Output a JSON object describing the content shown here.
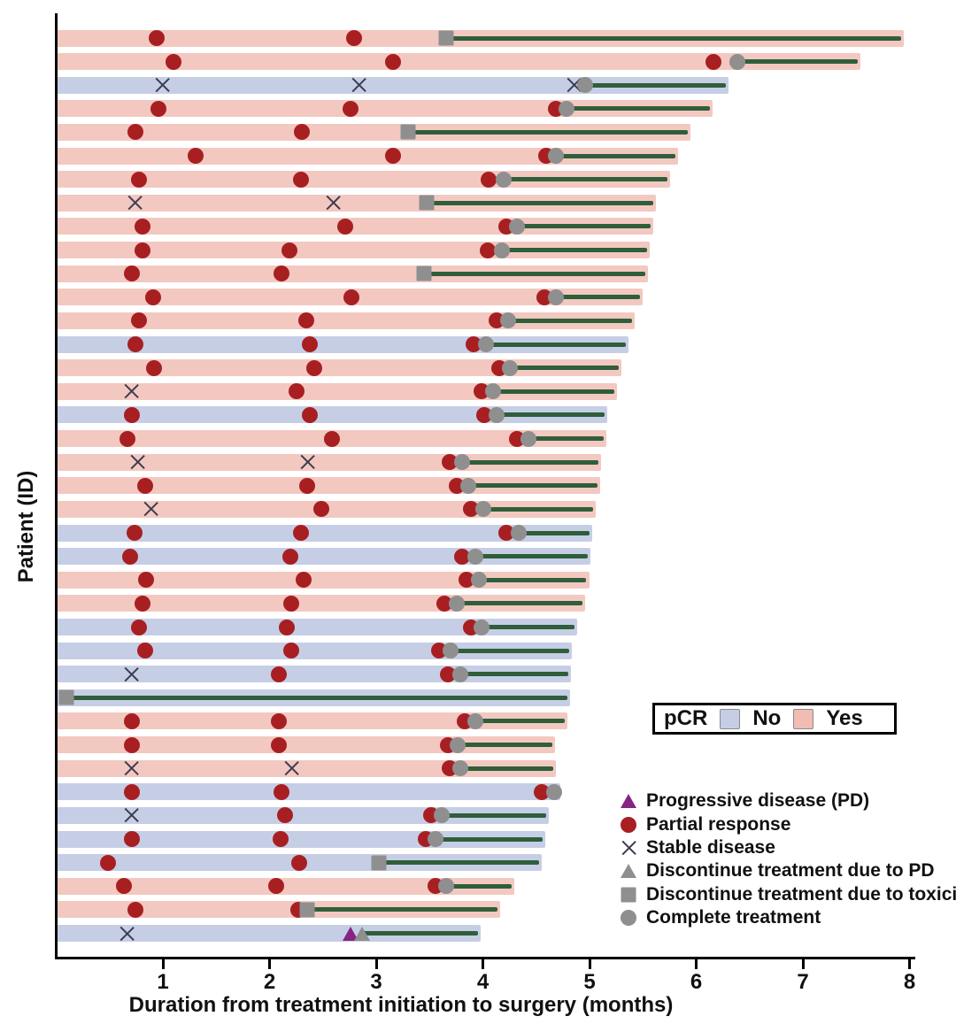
{
  "chart_data": {
    "type": "bar",
    "subtype": "swimmer-plot",
    "title": "",
    "xlabel": "Duration from treatment initiation to surgery (months)",
    "ylabel": "Patient (ID)",
    "xlim": [
      0,
      8
    ],
    "xticks": [
      1,
      2,
      3,
      4,
      5,
      6,
      7,
      8
    ],
    "grid": false,
    "legend_position": "bottom-right",
    "colors": {
      "pcr_yes_bar": "#f3c8c0",
      "pcr_no_bar": "#c6cee6",
      "treatment_line": "#2e5e3a",
      "partial_response": "#a81f22",
      "gray_marker": "#8f8f8f",
      "progressive_disease": "#872383",
      "stable_disease_x": "#3c3c50",
      "axis": "#000000"
    },
    "pcr_legend": {
      "title": "pCR",
      "no_label": "No",
      "yes_label": "Yes"
    },
    "marker_legend": [
      {
        "symbol": "pd",
        "label": "Progressive disease (PD)"
      },
      {
        "symbol": "pr",
        "label": "Partial response"
      },
      {
        "symbol": "sd",
        "label": "Stable disease"
      },
      {
        "symbol": "dpd",
        "label": "Discontinue treatment due to PD"
      },
      {
        "symbol": "tox",
        "label": "Discontinue treatment due to toxicity"
      },
      {
        "symbol": "comp",
        "label": "Complete treatment"
      }
    ],
    "marker_names": {
      "pd": "progressive-disease-marker",
      "pr": "partial-response-marker",
      "sd": "stable-disease-marker",
      "dpd": "discontinue-pd-marker",
      "tox": "discontinue-toxicity-marker",
      "comp": "complete-treatment-marker"
    },
    "patients": [
      {
        "pcr": "yes",
        "end": 7.95,
        "green_start": 3.66,
        "markers": [
          {
            "t": "pr",
            "x": 0.95
          },
          {
            "t": "pr",
            "x": 2.8
          },
          {
            "t": "tox",
            "x": 3.66
          }
        ]
      },
      {
        "pcr": "yes",
        "end": 7.54,
        "green_start": 6.39,
        "markers": [
          {
            "t": "pr",
            "x": 1.1
          },
          {
            "t": "pr",
            "x": 3.16
          },
          {
            "t": "pr",
            "x": 6.17
          },
          {
            "t": "comp",
            "x": 6.39
          }
        ]
      },
      {
        "pcr": "no",
        "end": 6.31,
        "green_start": 4.96,
        "markers": [
          {
            "t": "sd",
            "x": 1.0
          },
          {
            "t": "sd",
            "x": 2.84
          },
          {
            "t": "sd",
            "x": 4.86
          },
          {
            "t": "comp",
            "x": 4.96
          }
        ]
      },
      {
        "pcr": "yes",
        "end": 6.16,
        "green_start": 4.79,
        "markers": [
          {
            "t": "pr",
            "x": 0.96
          },
          {
            "t": "pr",
            "x": 2.76
          },
          {
            "t": "pr",
            "x": 4.69
          },
          {
            "t": "comp",
            "x": 4.79
          }
        ]
      },
      {
        "pcr": "yes",
        "end": 5.95,
        "green_start": 3.3,
        "markers": [
          {
            "t": "pr",
            "x": 0.75
          },
          {
            "t": "pr",
            "x": 2.31
          },
          {
            "t": "tox",
            "x": 3.3
          }
        ]
      },
      {
        "pcr": "yes",
        "end": 5.83,
        "green_start": 4.69,
        "markers": [
          {
            "t": "pr",
            "x": 1.31
          },
          {
            "t": "pr",
            "x": 3.16
          },
          {
            "t": "pr",
            "x": 4.6
          },
          {
            "t": "comp",
            "x": 4.69
          }
        ]
      },
      {
        "pcr": "yes",
        "end": 5.76,
        "green_start": 4.2,
        "markers": [
          {
            "t": "pr",
            "x": 0.78
          },
          {
            "t": "pr",
            "x": 2.3
          },
          {
            "t": "pr",
            "x": 4.06
          },
          {
            "t": "comp",
            "x": 4.2
          }
        ]
      },
      {
        "pcr": "yes",
        "end": 5.63,
        "green_start": 3.48,
        "markers": [
          {
            "t": "sd",
            "x": 0.74
          },
          {
            "t": "sd",
            "x": 2.6
          },
          {
            "t": "tox",
            "x": 3.48
          }
        ]
      },
      {
        "pcr": "yes",
        "end": 5.6,
        "green_start": 4.32,
        "markers": [
          {
            "t": "pr",
            "x": 0.81
          },
          {
            "t": "pr",
            "x": 2.71
          },
          {
            "t": "pr",
            "x": 4.22
          },
          {
            "t": "comp",
            "x": 4.32
          }
        ]
      },
      {
        "pcr": "yes",
        "end": 5.57,
        "green_start": 4.18,
        "markers": [
          {
            "t": "pr",
            "x": 0.81
          },
          {
            "t": "pr",
            "x": 2.19
          },
          {
            "t": "pr",
            "x": 4.05
          },
          {
            "t": "comp",
            "x": 4.18
          }
        ]
      },
      {
        "pcr": "yes",
        "end": 5.55,
        "green_start": 3.45,
        "markers": [
          {
            "t": "pr",
            "x": 0.71
          },
          {
            "t": "pr",
            "x": 2.12
          },
          {
            "t": "tox",
            "x": 3.45
          }
        ]
      },
      {
        "pcr": "yes",
        "end": 5.5,
        "green_start": 4.69,
        "markers": [
          {
            "t": "pr",
            "x": 0.91
          },
          {
            "t": "pr",
            "x": 2.77
          },
          {
            "t": "pr",
            "x": 4.58
          },
          {
            "t": "comp",
            "x": 4.69
          }
        ]
      },
      {
        "pcr": "yes",
        "end": 5.43,
        "green_start": 4.24,
        "markers": [
          {
            "t": "pr",
            "x": 0.78
          },
          {
            "t": "pr",
            "x": 2.35
          },
          {
            "t": "pr",
            "x": 4.13
          },
          {
            "t": "comp",
            "x": 4.24
          }
        ]
      },
      {
        "pcr": "no",
        "end": 5.37,
        "green_start": 4.03,
        "markers": [
          {
            "t": "pr",
            "x": 0.75
          },
          {
            "t": "pr",
            "x": 2.38
          },
          {
            "t": "pr",
            "x": 3.92
          },
          {
            "t": "comp",
            "x": 4.03
          }
        ]
      },
      {
        "pcr": "yes",
        "end": 5.3,
        "green_start": 4.26,
        "markers": [
          {
            "t": "pr",
            "x": 0.92
          },
          {
            "t": "pr",
            "x": 2.42
          },
          {
            "t": "pr",
            "x": 4.16
          },
          {
            "t": "comp",
            "x": 4.26
          }
        ]
      },
      {
        "pcr": "yes",
        "end": 5.26,
        "green_start": 4.1,
        "markers": [
          {
            "t": "sd",
            "x": 0.71
          },
          {
            "t": "pr",
            "x": 2.26
          },
          {
            "t": "pr",
            "x": 3.99
          },
          {
            "t": "comp",
            "x": 4.1
          }
        ]
      },
      {
        "pcr": "no",
        "end": 5.17,
        "green_start": 4.13,
        "markers": [
          {
            "t": "pr",
            "x": 0.71
          },
          {
            "t": "pr",
            "x": 2.38
          },
          {
            "t": "pr",
            "x": 4.02
          },
          {
            "t": "comp",
            "x": 4.13
          }
        ]
      },
      {
        "pcr": "yes",
        "end": 5.16,
        "green_start": 4.43,
        "markers": [
          {
            "t": "pr",
            "x": 0.67
          },
          {
            "t": "pr",
            "x": 2.59
          },
          {
            "t": "pr",
            "x": 4.32
          },
          {
            "t": "comp",
            "x": 4.43
          }
        ]
      },
      {
        "pcr": "yes",
        "end": 5.11,
        "green_start": 3.81,
        "markers": [
          {
            "t": "sd",
            "x": 0.77
          },
          {
            "t": "sd",
            "x": 2.36
          },
          {
            "t": "pr",
            "x": 3.69
          },
          {
            "t": "comp",
            "x": 3.81
          }
        ]
      },
      {
        "pcr": "yes",
        "end": 5.1,
        "green_start": 3.87,
        "markers": [
          {
            "t": "pr",
            "x": 0.84
          },
          {
            "t": "pr",
            "x": 2.36
          },
          {
            "t": "pr",
            "x": 3.76
          },
          {
            "t": "comp",
            "x": 3.87
          }
        ]
      },
      {
        "pcr": "yes",
        "end": 5.06,
        "green_start": 4.01,
        "markers": [
          {
            "t": "sd",
            "x": 0.89
          },
          {
            "t": "pr",
            "x": 2.49
          },
          {
            "t": "pr",
            "x": 3.89
          },
          {
            "t": "comp",
            "x": 4.01
          }
        ]
      },
      {
        "pcr": "no",
        "end": 5.03,
        "green_start": 4.34,
        "markers": [
          {
            "t": "pr",
            "x": 0.74
          },
          {
            "t": "pr",
            "x": 2.3
          },
          {
            "t": "pr",
            "x": 4.22
          },
          {
            "t": "comp",
            "x": 4.34
          }
        ]
      },
      {
        "pcr": "no",
        "end": 5.01,
        "green_start": 3.93,
        "markers": [
          {
            "t": "pr",
            "x": 0.7
          },
          {
            "t": "pr",
            "x": 2.2
          },
          {
            "t": "pr",
            "x": 3.81
          },
          {
            "t": "comp",
            "x": 3.93
          }
        ]
      },
      {
        "pcr": "yes",
        "end": 5.0,
        "green_start": 3.97,
        "markers": [
          {
            "t": "pr",
            "x": 0.85
          },
          {
            "t": "pr",
            "x": 2.32
          },
          {
            "t": "pr",
            "x": 3.85
          },
          {
            "t": "comp",
            "x": 3.97
          }
        ]
      },
      {
        "pcr": "yes",
        "end": 4.96,
        "green_start": 3.76,
        "markers": [
          {
            "t": "pr",
            "x": 0.81
          },
          {
            "t": "pr",
            "x": 2.21
          },
          {
            "t": "pr",
            "x": 3.64
          },
          {
            "t": "comp",
            "x": 3.76
          }
        ]
      },
      {
        "pcr": "no",
        "end": 4.89,
        "green_start": 3.99,
        "markers": [
          {
            "t": "pr",
            "x": 0.78
          },
          {
            "t": "pr",
            "x": 2.17
          },
          {
            "t": "pr",
            "x": 3.89
          },
          {
            "t": "comp",
            "x": 3.99
          }
        ]
      },
      {
        "pcr": "no",
        "end": 4.84,
        "green_start": 3.7,
        "markers": [
          {
            "t": "pr",
            "x": 0.84
          },
          {
            "t": "pr",
            "x": 2.21
          },
          {
            "t": "pr",
            "x": 3.59
          },
          {
            "t": "comp",
            "x": 3.7
          }
        ]
      },
      {
        "pcr": "no",
        "end": 4.83,
        "green_start": 3.79,
        "markers": [
          {
            "t": "sd",
            "x": 0.71
          },
          {
            "t": "pr",
            "x": 2.09
          },
          {
            "t": "pr",
            "x": 3.68
          },
          {
            "t": "comp",
            "x": 3.79
          }
        ]
      },
      {
        "pcr": "no",
        "end": 4.82,
        "green_start": 0.1,
        "markers": [
          {
            "t": "tox",
            "x": 0.1
          }
        ]
      },
      {
        "pcr": "yes",
        "end": 4.8,
        "green_start": 3.93,
        "markers": [
          {
            "t": "pr",
            "x": 0.71
          },
          {
            "t": "pr",
            "x": 2.09
          },
          {
            "t": "pr",
            "x": 3.83
          },
          {
            "t": "comp",
            "x": 3.93
          }
        ]
      },
      {
        "pcr": "yes",
        "end": 4.68,
        "green_start": 3.77,
        "markers": [
          {
            "t": "pr",
            "x": 0.71
          },
          {
            "t": "pr",
            "x": 2.09
          },
          {
            "t": "pr",
            "x": 3.68
          },
          {
            "t": "comp",
            "x": 3.77
          }
        ]
      },
      {
        "pcr": "yes",
        "end": 4.69,
        "green_start": 3.79,
        "markers": [
          {
            "t": "sd",
            "x": 0.71
          },
          {
            "t": "sd",
            "x": 2.21
          },
          {
            "t": "pr",
            "x": 3.69
          },
          {
            "t": "comp",
            "x": 3.79
          }
        ]
      },
      {
        "pcr": "no",
        "end": 4.73,
        "green_start": 4.67,
        "markers": [
          {
            "t": "pr",
            "x": 0.71
          },
          {
            "t": "pr",
            "x": 2.12
          },
          {
            "t": "pr",
            "x": 4.56
          },
          {
            "t": "comp",
            "x": 4.67
          }
        ]
      },
      {
        "pcr": "no",
        "end": 4.62,
        "green_start": 3.62,
        "markers": [
          {
            "t": "sd",
            "x": 0.71
          },
          {
            "t": "pr",
            "x": 2.15
          },
          {
            "t": "pr",
            "x": 3.52
          },
          {
            "t": "comp",
            "x": 3.62
          }
        ]
      },
      {
        "pcr": "no",
        "end": 4.59,
        "green_start": 3.56,
        "markers": [
          {
            "t": "pr",
            "x": 0.71
          },
          {
            "t": "pr",
            "x": 2.11
          },
          {
            "t": "pr",
            "x": 3.47
          },
          {
            "t": "comp",
            "x": 3.56
          }
        ]
      },
      {
        "pcr": "no",
        "end": 4.56,
        "green_start": 3.03,
        "markers": [
          {
            "t": "pr",
            "x": 0.49
          },
          {
            "t": "pr",
            "x": 2.28
          },
          {
            "t": "tox",
            "x": 3.03
          }
        ]
      },
      {
        "pcr": "yes",
        "end": 4.3,
        "green_start": 3.66,
        "markers": [
          {
            "t": "pr",
            "x": 0.64
          },
          {
            "t": "pr",
            "x": 2.07
          },
          {
            "t": "pr",
            "x": 3.56
          },
          {
            "t": "comp",
            "x": 3.66
          }
        ]
      },
      {
        "pcr": "yes",
        "end": 4.17,
        "green_start": 2.36,
        "markers": [
          {
            "t": "pr",
            "x": 0.75
          },
          {
            "t": "pr",
            "x": 2.27
          },
          {
            "t": "tox",
            "x": 2.36
          }
        ]
      },
      {
        "pcr": "no",
        "end": 3.98,
        "green_start": 2.87,
        "markers": [
          {
            "t": "sd",
            "x": 0.67
          },
          {
            "t": "pd",
            "x": 2.76
          },
          {
            "t": "dpd",
            "x": 2.87
          }
        ]
      }
    ]
  }
}
